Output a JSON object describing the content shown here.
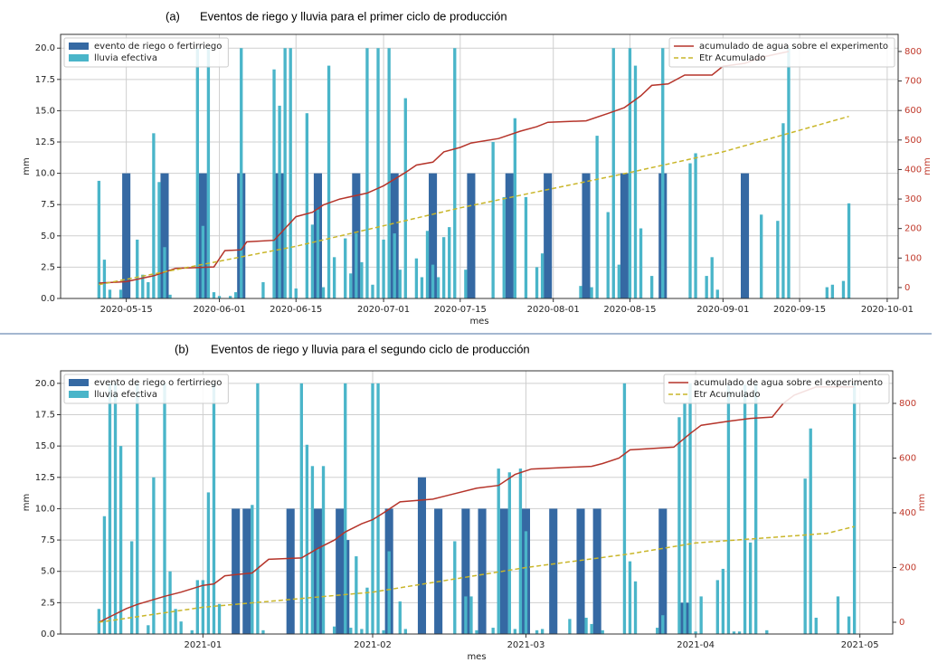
{
  "chart_data": [
    {
      "type": "bar",
      "panel_label": "(a)",
      "title": "Eventos de riego y lluvia para el primer ciclo de producción",
      "xlabel": "mes",
      "ylabel": "mm",
      "y2label": "mm",
      "grid": true,
      "legend": "upper left",
      "legend_y2": "upper right",
      "xlim": [
        "2020-05-03",
        "2020-10-03"
      ],
      "xticks": [
        "2020-05-15",
        "2020-06-01",
        "2020-06-15",
        "2020-07-01",
        "2020-07-15",
        "2020-08-01",
        "2020-08-15",
        "2020-09-01",
        "2020-09-15",
        "2020-10-01"
      ],
      "ylim": [
        0,
        21.1
      ],
      "yticks": [
        {
          "value": 0,
          "label": "0.0"
        },
        2.5,
        {
          "value": 5,
          "label": "5.0"
        },
        7.5,
        {
          "value": 10,
          "label": "10.0"
        },
        12.5,
        {
          "value": 15,
          "label": "15.0"
        },
        17.5,
        {
          "value": 20,
          "label": "20.0"
        }
      ],
      "y2lim": [
        -37,
        858
      ],
      "y2ticks": [
        0,
        100,
        200,
        300,
        400,
        500,
        600,
        700,
        800
      ],
      "series": [
        {
          "name": "evento de riego o fertirriego",
          "type": "bar",
          "color": "#3569a3",
          "x": [
            "2020-05-15",
            "2020-05-22",
            "2020-05-29",
            "2020-06-05",
            "2020-06-12",
            "2020-06-19",
            "2020-06-26",
            "2020-07-03",
            "2020-07-10",
            "2020-07-17",
            "2020-07-24",
            "2020-07-31",
            "2020-08-07",
            "2020-08-14",
            "2020-08-21",
            "2020-09-05"
          ],
          "values": [
            10,
            10,
            10,
            10,
            10,
            10,
            10,
            10,
            10,
            10,
            10,
            10,
            10,
            10,
            10,
            10
          ]
        },
        {
          "name": "lluvia efectiva",
          "type": "bar",
          "color": "#4ab5c9",
          "x": [
            "2020-05-10",
            "2020-05-11",
            "2020-05-12",
            "2020-05-14",
            "2020-05-17",
            "2020-05-18",
            "2020-05-19",
            "2020-05-20",
            "2020-05-21",
            "2020-05-22",
            "2020-05-23",
            "2020-05-28",
            "2020-05-29",
            "2020-05-30",
            "2020-05-31",
            "2020-06-01",
            "2020-06-03",
            "2020-06-04",
            "2020-06-05",
            "2020-06-09",
            "2020-06-11",
            "2020-06-12",
            "2020-06-13",
            "2020-06-14",
            "2020-06-15",
            "2020-06-17",
            "2020-06-18",
            "2020-06-19",
            "2020-06-20",
            "2020-06-21",
            "2020-06-22",
            "2020-06-24",
            "2020-06-25",
            "2020-06-26",
            "2020-06-27",
            "2020-06-28",
            "2020-06-29",
            "2020-06-30",
            "2020-07-01",
            "2020-07-02",
            "2020-07-03",
            "2020-07-04",
            "2020-07-05",
            "2020-07-07",
            "2020-07-08",
            "2020-07-09",
            "2020-07-10",
            "2020-07-11",
            "2020-07-12",
            "2020-07-13",
            "2020-07-14",
            "2020-07-16",
            "2020-07-21",
            "2020-07-23",
            "2020-07-25",
            "2020-07-27",
            "2020-07-29",
            "2020-07-30",
            "2020-08-06",
            "2020-08-08",
            "2020-08-09",
            "2020-08-11",
            "2020-08-12",
            "2020-08-13",
            "2020-08-15",
            "2020-08-16",
            "2020-08-17",
            "2020-08-19",
            "2020-08-21",
            "2020-08-26",
            "2020-08-27",
            "2020-08-29",
            "2020-08-30",
            "2020-08-31",
            "2020-09-08",
            "2020-09-11",
            "2020-09-12",
            "2020-09-13",
            "2020-09-20",
            "2020-09-21",
            "2020-09-23",
            "2020-09-24"
          ],
          "values": [
            9.4,
            3.1,
            0.7,
            0.7,
            4.7,
            1.9,
            1.3,
            13.2,
            9.3,
            4.1,
            0.3,
            20,
            5.8,
            20,
            0.5,
            0.2,
            0.2,
            0.5,
            20,
            1.3,
            18.3,
            15.4,
            20,
            20,
            0.8,
            14.8,
            5.9,
            7.1,
            0.9,
            18.6,
            3.3,
            4.8,
            2.0,
            5.2,
            2.9,
            20,
            1.1,
            20,
            4.7,
            20,
            5.2,
            2.3,
            16.0,
            3.2,
            1.7,
            5.4,
            2.7,
            1.7,
            4.9,
            5.7,
            20,
            2.3,
            12.5,
            8.1,
            14.4,
            8.1,
            2.5,
            3.6,
            1.0,
            0.9,
            13.0,
            6.9,
            20,
            2.7,
            20,
            18.6,
            5.6,
            1.8,
            20,
            10.8,
            11.6,
            1.8,
            3.3,
            0.7,
            6.7,
            6.2,
            14.0,
            20,
            0.9,
            1.1,
            1.4,
            7.6
          ]
        },
        {
          "name": "acumulado de agua sobre el experimento",
          "type": "line",
          "axis": "y2",
          "color": "#b5342a",
          "linestyle": "solid",
          "x": [
            "2020-05-10",
            "2020-05-15",
            "2020-05-20",
            "2020-05-24",
            "2020-05-31",
            "2020-06-02",
            "2020-06-05",
            "2020-06-06",
            "2020-06-11",
            "2020-06-15",
            "2020-06-18",
            "2020-06-20",
            "2020-06-23",
            "2020-06-28",
            "2020-07-01",
            "2020-07-05",
            "2020-07-07",
            "2020-07-10",
            "2020-07-12",
            "2020-07-15",
            "2020-07-17",
            "2020-07-22",
            "2020-07-26",
            "2020-07-29",
            "2020-07-31",
            "2020-08-07",
            "2020-08-11",
            "2020-08-14",
            "2020-08-17",
            "2020-08-19",
            "2020-08-22",
            "2020-08-25",
            "2020-08-30",
            "2020-09-01",
            "2020-09-05",
            "2020-09-08",
            "2020-09-13"
          ],
          "values": [
            15,
            20,
            40,
            65,
            70,
            125,
            128,
            155,
            160,
            240,
            255,
            280,
            300,
            320,
            345,
            390,
            415,
            425,
            460,
            475,
            490,
            505,
            530,
            545,
            560,
            565,
            590,
            610,
            650,
            685,
            690,
            720,
            720,
            750,
            760,
            780,
            800
          ]
        },
        {
          "name": "Etr Acumulado",
          "type": "line",
          "axis": "y2",
          "color": "#c9b62a",
          "linestyle": "dashed",
          "x": [
            "2020-05-10",
            "2020-06-15",
            "2020-07-15",
            "2020-08-15",
            "2020-09-01",
            "2020-09-24"
          ],
          "values": [
            10,
            140,
            270,
            390,
            460,
            580
          ]
        }
      ]
    },
    {
      "type": "bar",
      "panel_label": "(b)",
      "title": "Eventos de riego y lluvia para el segundo ciclo de producción",
      "xlabel": "mes",
      "ylabel": "mm",
      "y2label": "mm",
      "grid": true,
      "legend": "upper left",
      "legend_y2": "upper right",
      "xlim": [
        "2020-12-06",
        "2021-05-07"
      ],
      "xticks": [
        "2021-01",
        "2021-02",
        "2021-03",
        "2021-04",
        "2021-05"
      ],
      "ylim": [
        0,
        21
      ],
      "yticks": [
        {
          "value": 0,
          "label": "0.0"
        },
        2.5,
        {
          "value": 5,
          "label": "5.0"
        },
        7.5,
        {
          "value": 10,
          "label": "10.0"
        },
        12.5,
        {
          "value": 15,
          "label": "15.0"
        },
        17.5,
        {
          "value": 20,
          "label": "20.0"
        }
      ],
      "y2lim": [
        -43,
        919
      ],
      "y2ticks": [
        0,
        200,
        400,
        600,
        800
      ],
      "series": [
        {
          "name": "evento de riego o fertirriego",
          "type": "bar",
          "color": "#3569a3",
          "x": [
            "2021-01-07",
            "2021-01-09",
            "2021-01-17",
            "2021-01-22",
            "2021-01-26",
            "2021-01-27",
            "2021-02-04",
            "2021-02-10",
            "2021-02-13",
            "2021-02-18",
            "2021-02-21",
            "2021-02-25",
            "2021-03-01",
            "2021-03-06",
            "2021-03-11",
            "2021-03-14",
            "2021-03-26",
            "2021-03-30"
          ],
          "values": [
            10,
            10,
            10,
            10,
            10,
            7.5,
            10,
            12.5,
            10,
            10,
            10,
            10,
            10,
            10,
            10,
            10,
            10,
            2.5
          ]
        },
        {
          "name": "lluvia efectiva",
          "type": "bar",
          "color": "#4ab5c9",
          "x": [
            "2020-12-13",
            "2020-12-14",
            "2020-12-15",
            "2020-12-16",
            "2020-12-17",
            "2020-12-19",
            "2020-12-20",
            "2020-12-22",
            "2020-12-23",
            "2020-12-25",
            "2020-12-26",
            "2020-12-27",
            "2020-12-28",
            "2020-12-30",
            "2020-12-31",
            "2021-01-01",
            "2021-01-02",
            "2021-01-03",
            "2021-01-04",
            "2021-01-10",
            "2021-01-11",
            "2021-01-12",
            "2021-01-19",
            "2021-01-20",
            "2021-01-21",
            "2021-01-22",
            "2021-01-23",
            "2021-01-25",
            "2021-01-27",
            "2021-01-28",
            "2021-01-29",
            "2021-01-30",
            "2021-01-31",
            "2021-02-01",
            "2021-02-02",
            "2021-02-03",
            "2021-02-04",
            "2021-02-06",
            "2021-02-07",
            "2021-02-16",
            "2021-02-18",
            "2021-02-19",
            "2021-02-20",
            "2021-02-23",
            "2021-02-24",
            "2021-02-26",
            "2021-02-27",
            "2021-02-28",
            "2021-03-01",
            "2021-03-03",
            "2021-03-04",
            "2021-03-09",
            "2021-03-12",
            "2021-03-13",
            "2021-03-15",
            "2021-03-19",
            "2021-03-20",
            "2021-03-21",
            "2021-03-25",
            "2021-03-26",
            "2021-03-29",
            "2021-03-30",
            "2021-03-31",
            "2021-04-01",
            "2021-04-02",
            "2021-04-05",
            "2021-04-06",
            "2021-04-07",
            "2021-04-08",
            "2021-04-09",
            "2021-04-10",
            "2021-04-11",
            "2021-04-12",
            "2021-04-14",
            "2021-04-21",
            "2021-04-22",
            "2021-04-23",
            "2021-04-27",
            "2021-04-29",
            "2021-04-30"
          ],
          "values": [
            2.0,
            9.4,
            20,
            20,
            15.0,
            7.4,
            20,
            0.7,
            12.5,
            20,
            5.0,
            2.0,
            1.0,
            0.3,
            4.3,
            4.3,
            11.3,
            20,
            2.4,
            10.3,
            20,
            0.3,
            20,
            15.1,
            13.4,
            6.8,
            13.4,
            0.6,
            20,
            0.5,
            6.2,
            0.4,
            3.7,
            20,
            20,
            0.3,
            6.6,
            2.6,
            0.4,
            7.4,
            3.0,
            3.0,
            0.3,
            0.5,
            13.2,
            12.9,
            0.4,
            13.2,
            8.2,
            0.3,
            0.4,
            1.2,
            1.3,
            0.8,
            0.3,
            20,
            5.8,
            4.2,
            0.5,
            1.5,
            17.3,
            18.4,
            20,
            0.2,
            3.0,
            4.3,
            5.2,
            19.9,
            0.2,
            0.2,
            19.9,
            7.3,
            20,
            0.3,
            12.4,
            16.4,
            1.3,
            3.0,
            1.4,
            20
          ]
        },
        {
          "name": "acumulado de agua sobre el experimento",
          "type": "line",
          "axis": "y2",
          "color": "#b5342a",
          "linestyle": "solid",
          "x": [
            "2020-12-13",
            "2020-12-18",
            "2020-12-20",
            "2020-12-25",
            "2020-12-28",
            "2021-01-01",
            "2021-01-03",
            "2021-01-05",
            "2021-01-10",
            "2021-01-13",
            "2021-01-19",
            "2021-01-22",
            "2021-01-25",
            "2021-01-27",
            "2021-01-30",
            "2021-02-01",
            "2021-02-03",
            "2021-02-06",
            "2021-02-12",
            "2021-02-14",
            "2021-02-20",
            "2021-02-24",
            "2021-02-27",
            "2021-03-02",
            "2021-03-13",
            "2021-03-15",
            "2021-03-18",
            "2021-03-20",
            "2021-03-28",
            "2021-03-31",
            "2021-04-02",
            "2021-04-07",
            "2021-04-11",
            "2021-04-15",
            "2021-04-17",
            "2021-04-19",
            "2021-04-23",
            "2021-04-30"
          ],
          "values": [
            0,
            50,
            65,
            95,
            110,
            135,
            140,
            170,
            180,
            230,
            235,
            270,
            300,
            330,
            360,
            375,
            400,
            440,
            450,
            460,
            490,
            500,
            540,
            560,
            570,
            580,
            600,
            630,
            640,
            690,
            720,
            735,
            745,
            750,
            800,
            830,
            860,
            860
          ]
        },
        {
          "name": "Etr Acumulado",
          "type": "line",
          "axis": "y2",
          "color": "#c9b62a",
          "linestyle": "dashed",
          "x": [
            "2020-12-13",
            "2021-01-01",
            "2021-02-01",
            "2021-03-01",
            "2021-03-20",
            "2021-04-01",
            "2021-04-15",
            "2021-04-25",
            "2021-04-30"
          ],
          "values": [
            0,
            55,
            110,
            200,
            250,
            290,
            310,
            325,
            350
          ]
        }
      ]
    }
  ]
}
